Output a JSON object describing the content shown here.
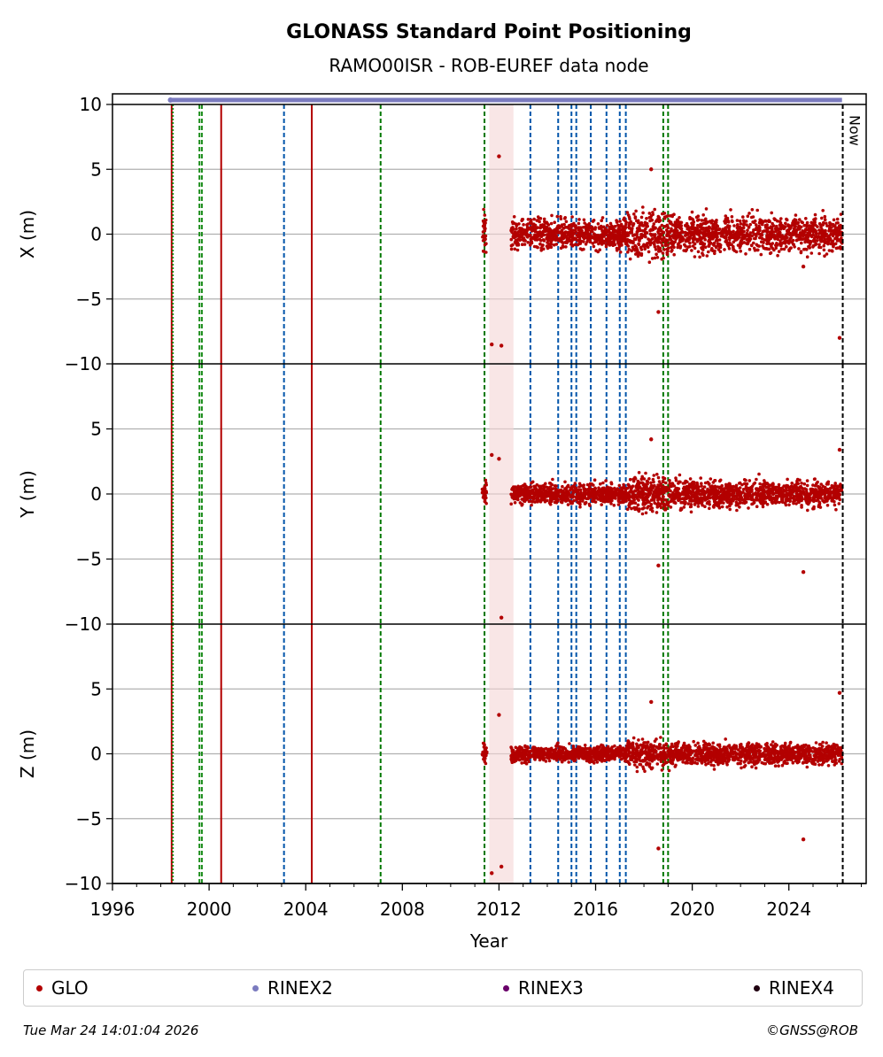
{
  "chart_data": {
    "type": "scatter",
    "title": "GLONASS Standard Point Positioning",
    "subtitle": "RAMO00ISR - ROB-EUREF data node",
    "xlabel": "Year",
    "xlim": [
      1996,
      2027.2
    ],
    "xticks": [
      "1996",
      "2000",
      "2004",
      "2008",
      "2012",
      "2016",
      "2020",
      "2024"
    ],
    "panels": [
      {
        "ylabel": "X (m)",
        "ylim": [
          -10,
          10
        ],
        "yticks": [
          "−10",
          "−5",
          "0",
          "5",
          "10"
        ]
      },
      {
        "ylabel": "Y (m)",
        "ylim": [
          -10,
          10
        ],
        "yticks": [
          "−10",
          "−5",
          "0",
          "5"
        ]
      },
      {
        "ylabel": "Z (m)",
        "ylim": [
          -10,
          10
        ],
        "yticks": [
          "−10",
          "−5",
          "0",
          "5"
        ]
      }
    ],
    "now_label": "Now",
    "now_year": 2026.23,
    "grid": true,
    "legend_position": "bottom",
    "series": [
      {
        "name": "GLO",
        "color": "#b30000"
      },
      {
        "name": "RINEX2",
        "color": "#7b7bbf"
      },
      {
        "name": "RINEX3",
        "color": "#6a006a"
      },
      {
        "name": "RINEX4",
        "color": "#200010"
      }
    ],
    "rinex2_coverage": [
      1998.4,
      2026.2
    ],
    "shaded_interval": [
      2011.6,
      2012.6
    ],
    "event_lines": [
      {
        "year": 1998.45,
        "color": "#b30000",
        "style": "solid"
      },
      {
        "year": 1998.5,
        "color": "#1a8c1a",
        "style": "dotted"
      },
      {
        "year": 1999.6,
        "color": "#1a8c1a",
        "style": "dashed"
      },
      {
        "year": 1999.7,
        "color": "#1a8c1a",
        "style": "dashed"
      },
      {
        "year": 2000.5,
        "color": "#b30000",
        "style": "solid"
      },
      {
        "year": 2003.1,
        "color": "#0055aa",
        "style": "dashed"
      },
      {
        "year": 2004.25,
        "color": "#b30000",
        "style": "solid"
      },
      {
        "year": 2007.1,
        "color": "#007700",
        "style": "dashed"
      },
      {
        "year": 2011.4,
        "color": "#007700",
        "style": "dashed"
      },
      {
        "year": 2013.3,
        "color": "#0055aa",
        "style": "dashed"
      },
      {
        "year": 2014.45,
        "color": "#0055aa",
        "style": "dashed"
      },
      {
        "year": 2015.0,
        "color": "#0055aa",
        "style": "dashed"
      },
      {
        "year": 2015.2,
        "color": "#0055aa",
        "style": "dashed"
      },
      {
        "year": 2015.8,
        "color": "#0055aa",
        "style": "dashed"
      },
      {
        "year": 2016.45,
        "color": "#0055aa",
        "style": "dashed"
      },
      {
        "year": 2017.0,
        "color": "#0055aa",
        "style": "dashed"
      },
      {
        "year": 2017.25,
        "color": "#0055aa",
        "style": "dashed"
      },
      {
        "year": 2018.8,
        "color": "#007700",
        "style": "dashed"
      },
      {
        "year": 2019.0,
        "color": "#007700",
        "style": "dashed"
      }
    ],
    "scatter_segments": [
      {
        "start": 2011.3,
        "end": 2011.5,
        "x_spread": 2.0,
        "y_spread": 1.0,
        "z_spread": 0.8
      },
      {
        "start": 2012.5,
        "end": 2017.3,
        "x_spread": 1.3,
        "y_spread": 0.9,
        "z_spread": 0.7
      },
      {
        "start": 2017.3,
        "end": 2019.2,
        "x_spread": 2.2,
        "y_spread": 1.6,
        "z_spread": 1.3
      },
      {
        "start": 2019.2,
        "end": 2024.0,
        "x_spread": 1.6,
        "y_spread": 1.2,
        "z_spread": 1.0
      },
      {
        "start": 2024.0,
        "end": 2026.2,
        "x_spread": 1.6,
        "y_spread": 1.2,
        "z_spread": 1.0
      }
    ],
    "outliers": [
      {
        "year": 2011.7,
        "x": -8.5,
        "y": 3.0,
        "z": -9.2
      },
      {
        "year": 2012.0,
        "x": 6.0,
        "y": 2.7,
        "z": 3.0
      },
      {
        "year": 2012.1,
        "x": -8.6,
        "y": -9.5,
        "z": -8.7
      },
      {
        "year": 2018.3,
        "x": 5.0,
        "y": 4.2,
        "z": 4.0
      },
      {
        "year": 2018.6,
        "x": -6.0,
        "y": -5.5,
        "z": -7.3
      },
      {
        "year": 2024.6,
        "x": -2.5,
        "y": -6.0,
        "z": -6.6
      },
      {
        "year": 2026.1,
        "x": -8.0,
        "y": 3.4,
        "z": 4.7
      }
    ]
  },
  "legend": {
    "glo": "GLO",
    "rinex2": "RINEX2",
    "rinex3": "RINEX3",
    "rinex4": "RINEX4"
  },
  "footer": {
    "timestamp": "Tue Mar 24 14:01:04 2026",
    "copyright": "©GNSS@ROB"
  }
}
